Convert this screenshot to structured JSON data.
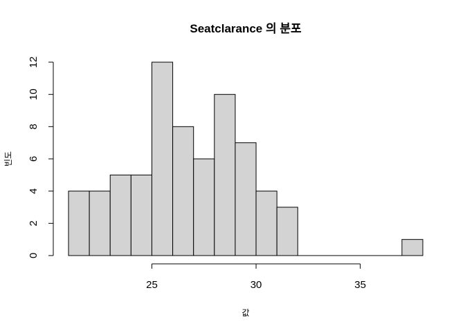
{
  "chart_data": {
    "type": "histogram",
    "title": "Seatclarance 의 분포",
    "xlabel": "값",
    "ylabel": "빈도",
    "bin_edges": [
      21,
      22,
      23,
      24,
      25,
      26,
      27,
      28,
      29,
      30,
      31,
      32,
      33,
      34,
      35,
      36,
      37,
      38
    ],
    "counts": [
      4,
      4,
      5,
      5,
      12,
      8,
      6,
      10,
      7,
      4,
      3,
      0,
      0,
      0,
      0,
      0,
      1
    ],
    "xlim": [
      21,
      38
    ],
    "ylim": [
      0,
      12
    ],
    "x_ticks": [
      25,
      30,
      35
    ],
    "y_ticks": [
      0,
      2,
      4,
      6,
      8,
      10,
      12
    ],
    "bar_fill": "#d3d3d3",
    "bar_stroke": "#000000",
    "grid": false
  }
}
